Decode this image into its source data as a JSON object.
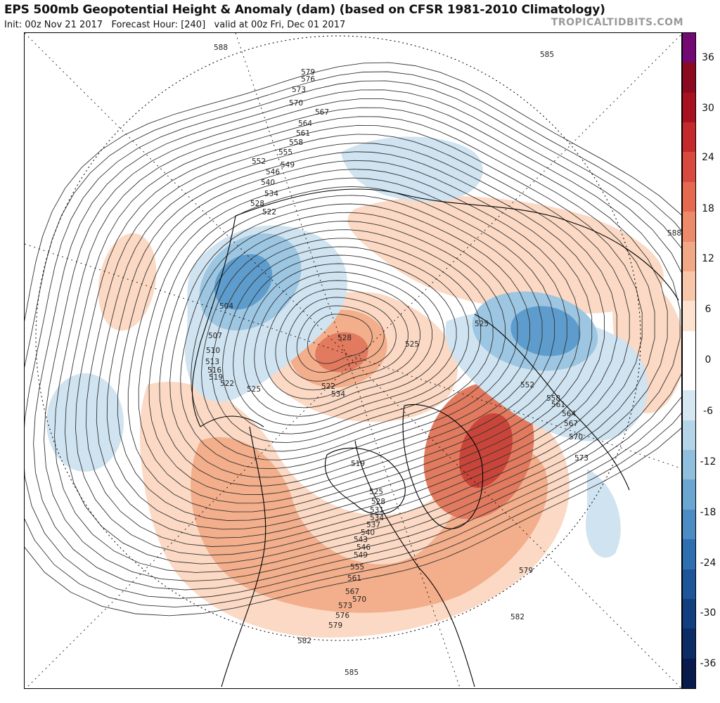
{
  "header": {
    "title": "EPS 500mb Geopotential Height & Anomaly (dam) (based on CFSR 1981-2010 Climatology)",
    "subtitle": "Init: 00z Nov 21 2017   Forecast Hour: [240]   valid at 00z Fri, Dec 01 2017",
    "brand": "TROPICALTIDBITS.COM"
  },
  "colorbar": {
    "ticks": [
      "36",
      "30",
      "24",
      "18",
      "12",
      "6",
      "0",
      "-6",
      "-12",
      "-18",
      "-24",
      "-30",
      "-36"
    ],
    "segments": [
      "#730a73",
      "#8b0a1f",
      "#a8111f",
      "#c42a2c",
      "#d8493f",
      "#e4694f",
      "#ec8a6a",
      "#f2a887",
      "#f8c6a9",
      "#fde2d2",
      "#ffffff",
      "#ffffff",
      "#d6e7f2",
      "#b4d4e8",
      "#90bfdd",
      "#6aa6d1",
      "#4a8cc3",
      "#2d6fb0",
      "#1c5598",
      "#123f80",
      "#0c2c66",
      "#081b4c"
    ]
  },
  "map": {
    "colors": {
      "warm_light": "#fbd9c4",
      "warm_mid": "#f3ae8b",
      "warm_strong": "#e17a5e",
      "warm_core": "#c9453a",
      "cold_light": "#cfe3f0",
      "cold_mid": "#9cc6e2",
      "cold_strong": "#5d9ccc",
      "cold_core": "#3a7cbd",
      "contour": "#333333",
      "coast": "#000000"
    },
    "contour_labels": [
      "588",
      "585",
      "579",
      "576",
      "573",
      "570",
      "567",
      "564",
      "561",
      "558",
      "555",
      "552",
      "549",
      "546",
      "540",
      "534",
      "528",
      "522",
      "504",
      "507",
      "510",
      "513",
      "516",
      "519",
      "522",
      "525",
      "528",
      "525",
      "522",
      "534",
      "525",
      "552",
      "558",
      "561",
      "564",
      "567",
      "570",
      "573",
      "588",
      "519",
      "525",
      "528",
      "531",
      "534",
      "537",
      "540",
      "543",
      "546",
      "549",
      "555",
      "561",
      "567",
      "570",
      "573",
      "576",
      "579",
      "582",
      "585",
      "582",
      "579"
    ]
  }
}
